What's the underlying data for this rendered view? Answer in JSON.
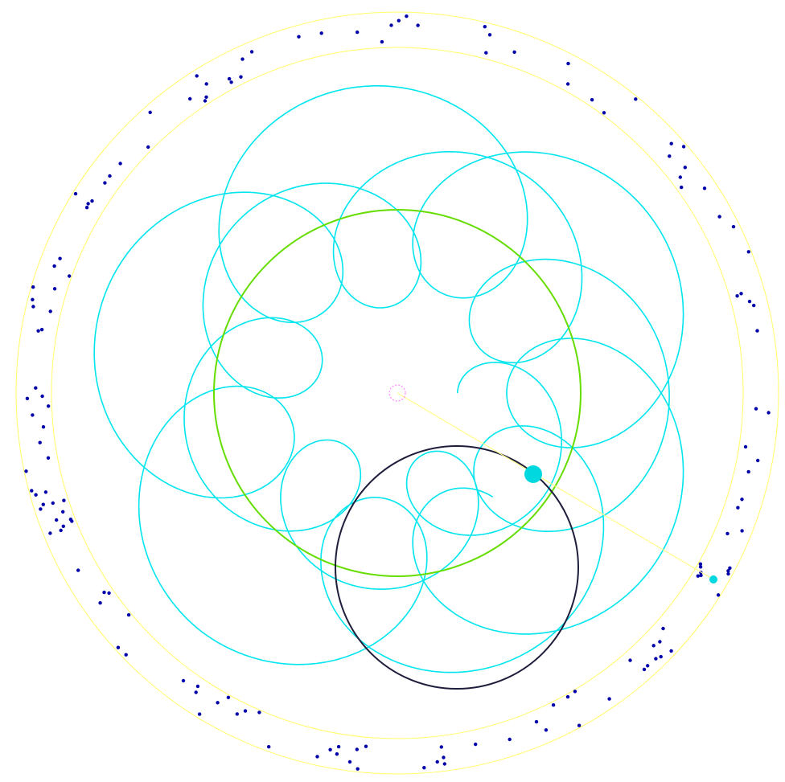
{
  "diagram": {
    "type": "spirograph",
    "center_marker": "center-point",
    "colors": {
      "background": "#ffffff",
      "boundary_rings": "#ffff66",
      "trace": "#00e5ee",
      "fixed_circle": "#66dd00",
      "rolling_circle": "#1e1e3c",
      "arm": "#ffff88",
      "pen_point": "#00d8e0",
      "arm_end": "#00d8e0",
      "center_marker": "#ff88ff",
      "scatter_dots": "#0000aa"
    }
  }
}
